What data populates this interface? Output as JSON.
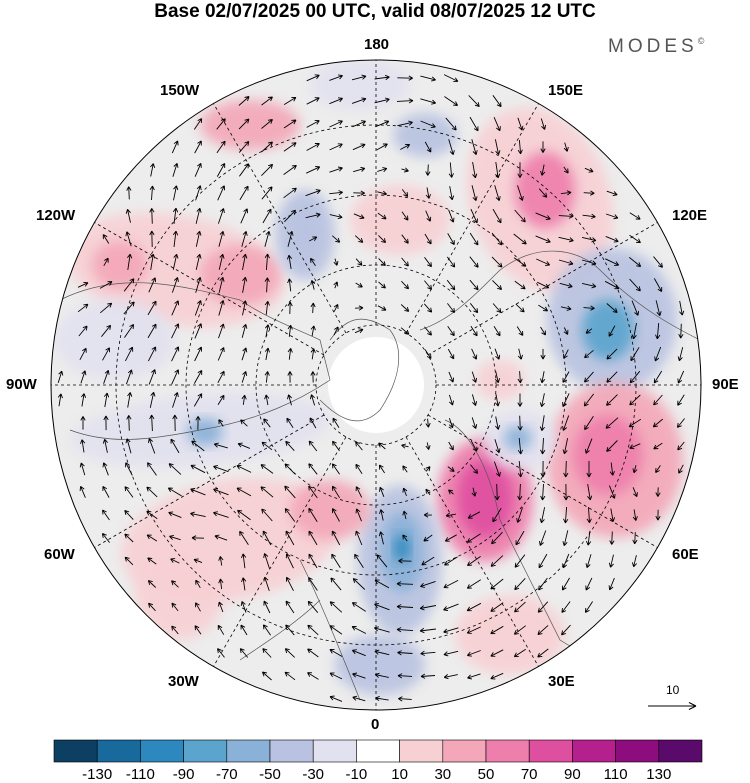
{
  "title": "Base 02/07/2025 00 UTC, valid 08/07/2025 12 UTC",
  "brand": "MODES",
  "brand_mark": "©",
  "longitude_labels": {
    "lon_180": "180",
    "lon_150w": "150W",
    "lon_150e": "150E",
    "lon_120w": "120W",
    "lon_120e": "120E",
    "lon_90w": "90W",
    "lon_90e": "90E",
    "lon_60w": "60W",
    "lon_60e": "60E",
    "lon_30w": "30W",
    "lon_30e": "30E",
    "lon_0": "0"
  },
  "reference_vector": {
    "value": "10",
    "icon": "arrow-right-icon"
  },
  "colorbar": {
    "labels": [
      "-130",
      "-110",
      "-90",
      "-70",
      "-50",
      "-30",
      "-10",
      "10",
      "30",
      "50",
      "70",
      "90",
      "110",
      "130"
    ],
    "colors": [
      "#0d3f63",
      "#176a9b",
      "#2c88be",
      "#5ba4cd",
      "#8ab1d8",
      "#b9c3e1",
      "#e2e1ef",
      "#ffffff",
      "#f7d0d4",
      "#f3a7b8",
      "#ee7fac",
      "#df4fa0",
      "#b61f8e",
      "#8d0d7e",
      "#5a0a6a"
    ]
  },
  "map_colors": {
    "background": "#ededed",
    "land_outline": "#555555",
    "graticule": "#000000",
    "arrow": "#000000"
  }
}
